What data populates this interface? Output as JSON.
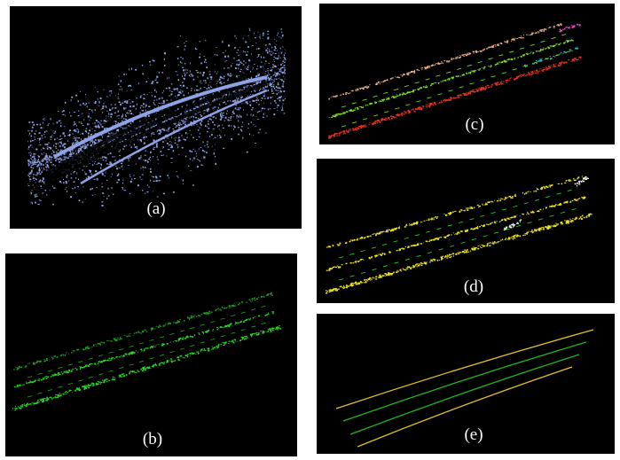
{
  "panels": [
    {
      "id": "a",
      "caption": "(a)",
      "content": "raw-point-cloud",
      "colors": [
        "#8ea2e6"
      ]
    },
    {
      "id": "b",
      "caption": "(b)",
      "content": "road-surface-points",
      "colors": [
        "#22dd22",
        "#1e9a1e"
      ]
    },
    {
      "id": "c",
      "caption": "(c)",
      "content": "clustered-lane-points",
      "colors": [
        "#e8331e",
        "#7ddc2a",
        "#2fb7b8",
        "#e8b08a",
        "#ff4fd8"
      ]
    },
    {
      "id": "d",
      "caption": "(d)",
      "content": "boundary-and-lane-points",
      "colors": [
        "#f1e51c",
        "#22cc22",
        "#ffffff"
      ]
    },
    {
      "id": "e",
      "caption": "(e)",
      "content": "fitted-lane-curves",
      "colors": [
        "#e6c22a",
        "#22b422"
      ]
    }
  ]
}
